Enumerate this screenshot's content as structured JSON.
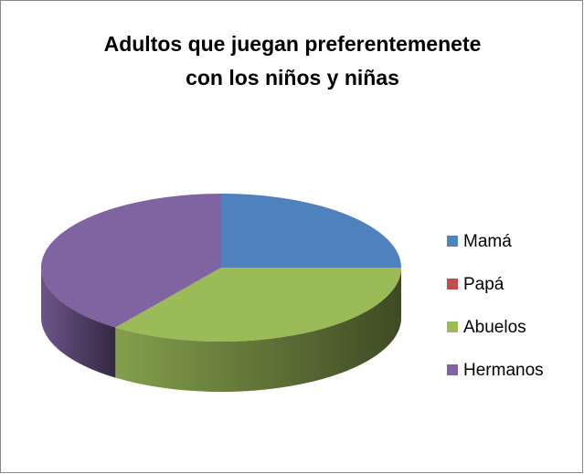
{
  "chart_data": {
    "type": "pie3d",
    "title": "Adultos que juegan preferentemenete con los niños y niñas",
    "categories": [
      "Mamá",
      "Papá",
      "Abuelos",
      "Hermanos"
    ],
    "values": [
      25,
      0,
      35,
      40
    ],
    "colors": [
      "#4f81bd",
      "#c0504d",
      "#9bbb59",
      "#8064a2"
    ],
    "legend": "right"
  }
}
